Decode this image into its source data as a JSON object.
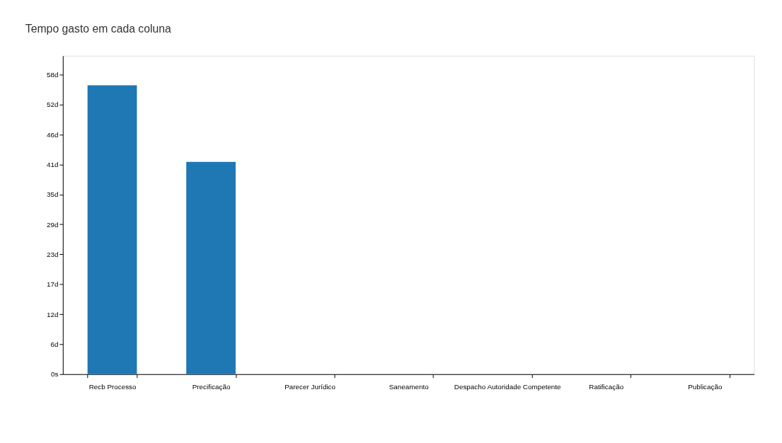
{
  "chart_data": {
    "type": "bar",
    "title": "Tempo gasto em cada coluna",
    "categories": [
      "Recb Processo",
      "Precificação",
      "Parecer Jurídico",
      "Saneamento",
      "Despacho Autoridade Competente",
      "Ratificação",
      "Publicação"
    ],
    "values": [
      55.8,
      41.0,
      0,
      0,
      0,
      0,
      0
    ],
    "color": "#1f77b4",
    "ylim": [
      0,
      61.5
    ],
    "yticks": [
      {
        "value": 0,
        "label": "0s"
      },
      {
        "value": 5.787,
        "label": "6d"
      },
      {
        "value": 11.574,
        "label": "12d"
      },
      {
        "value": 17.361,
        "label": "17d"
      },
      {
        "value": 23.148,
        "label": "23d"
      },
      {
        "value": 28.935,
        "label": "29d"
      },
      {
        "value": 34.722,
        "label": "35d"
      },
      {
        "value": 40.509,
        "label": "41d"
      },
      {
        "value": 46.296,
        "label": "46d"
      },
      {
        "value": 52.083,
        "label": "52d"
      },
      {
        "value": 57.87,
        "label": "58d"
      }
    ],
    "grid": false
  }
}
